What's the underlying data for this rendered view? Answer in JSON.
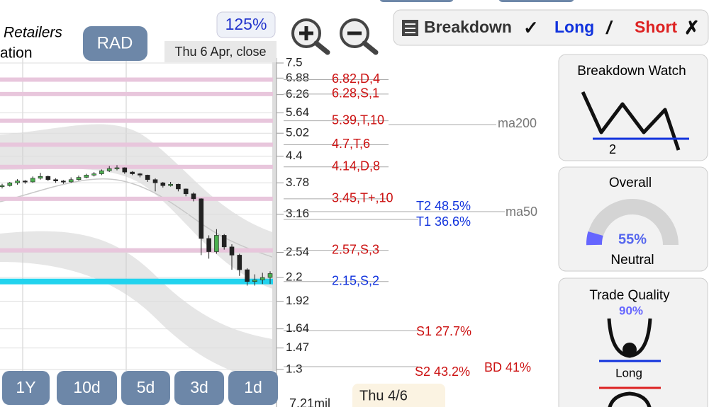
{
  "header": {
    "sector": "Retailers",
    "sector_cont": "ation",
    "symbol": "RAD",
    "zoom": "125%",
    "date": "Thu 6 Apr, close"
  },
  "signals": {
    "breakdown": "Breakdown",
    "breakdown_mark": "✓",
    "long": "Long",
    "long_mark": "/",
    "short": "Short",
    "short_mark": "✗"
  },
  "price_axis": {
    "scale": "log",
    "ylim": [
      1.3,
      7.5
    ],
    "ticks": [
      7.5,
      6.88,
      6.26,
      5.64,
      5.02,
      4.4,
      3.78,
      3.16,
      2.54,
      2.2,
      1.92,
      1.64,
      1.47,
      1.3
    ]
  },
  "levels": [
    {
      "value": 6.82,
      "label": "6.82,D,4",
      "side": "resistance"
    },
    {
      "value": 6.28,
      "label": "6.28,S,1",
      "side": "resistance"
    },
    {
      "value": 5.39,
      "label": "5.39,T,10",
      "side": "resistance"
    },
    {
      "value": 4.7,
      "label": "4.7,T,6",
      "side": "resistance"
    },
    {
      "value": 4.14,
      "label": "4.14,D,8",
      "side": "resistance"
    },
    {
      "value": 3.45,
      "label": "3.45,T+,10",
      "side": "resistance"
    },
    {
      "value": 2.57,
      "label": "2.57,S,3",
      "side": "resistance"
    },
    {
      "value": 2.15,
      "label": "2.15,S,2",
      "side": "support"
    }
  ],
  "moving_averages": [
    "ma200",
    "ma50"
  ],
  "targets": [
    "T2 48.5%",
    "T1 36.6%",
    "S1 27.7%",
    "S2 43.2%",
    "BD 41%"
  ],
  "candles": [
    [
      3.7,
      3.76,
      3.66,
      3.72
    ],
    [
      3.72,
      3.8,
      3.7,
      3.78
    ],
    [
      3.78,
      3.86,
      3.74,
      3.82
    ],
    [
      3.82,
      3.84,
      3.76,
      3.8
    ],
    [
      3.8,
      3.92,
      3.78,
      3.88
    ],
    [
      3.88,
      4.0,
      3.85,
      3.92
    ],
    [
      3.92,
      3.94,
      3.82,
      3.85
    ],
    [
      3.85,
      3.88,
      3.78,
      3.82
    ],
    [
      3.82,
      3.84,
      3.76,
      3.8
    ],
    [
      3.8,
      3.9,
      3.78,
      3.85
    ],
    [
      3.85,
      3.94,
      3.83,
      3.9
    ],
    [
      3.9,
      3.98,
      3.88,
      3.95
    ],
    [
      3.95,
      4.02,
      3.92,
      3.98
    ],
    [
      3.98,
      4.08,
      3.95,
      4.05
    ],
    [
      4.05,
      4.16,
      4.02,
      4.1
    ],
    [
      4.1,
      4.18,
      4.06,
      4.12
    ],
    [
      4.12,
      4.13,
      3.98,
      4.02
    ],
    [
      4.02,
      4.04,
      3.95,
      3.98
    ],
    [
      3.98,
      4.0,
      3.9,
      3.95
    ],
    [
      3.95,
      3.96,
      3.8,
      3.85
    ],
    [
      3.85,
      3.88,
      3.6,
      3.78
    ],
    [
      3.78,
      3.8,
      3.68,
      3.72
    ],
    [
      3.72,
      3.8,
      3.7,
      3.75
    ],
    [
      3.75,
      3.76,
      3.6,
      3.65
    ],
    [
      3.65,
      3.66,
      3.5,
      3.55
    ],
    [
      3.55,
      3.58,
      3.4,
      3.45
    ],
    [
      3.45,
      3.46,
      2.5,
      2.75
    ],
    [
      2.75,
      2.8,
      2.45,
      2.55
    ],
    [
      2.55,
      2.9,
      2.52,
      2.8
    ],
    [
      2.8,
      2.82,
      2.58,
      2.62
    ],
    [
      2.62,
      2.66,
      2.3,
      2.5
    ],
    [
      2.5,
      2.52,
      2.22,
      2.3
    ],
    [
      2.3,
      2.32,
      2.1,
      2.15
    ],
    [
      2.15,
      2.24,
      2.1,
      2.17
    ],
    [
      2.17,
      2.26,
      2.12,
      2.2
    ],
    [
      2.2,
      2.28,
      2.12,
      2.25
    ]
  ],
  "periods": [
    "1Y",
    "10d",
    "5d",
    "3d",
    "1d"
  ],
  "footer": {
    "date": "Thu 4/6",
    "volume": "7.21mil"
  },
  "panels": {
    "breakdown_watch": {
      "title": "Breakdown Watch",
      "count": "2"
    },
    "overall": {
      "title": "Overall",
      "percent": "55%",
      "rating": "Neutral"
    },
    "trade_quality": {
      "title": "Trade Quality",
      "percent": "90%",
      "rating": "Long"
    }
  }
}
